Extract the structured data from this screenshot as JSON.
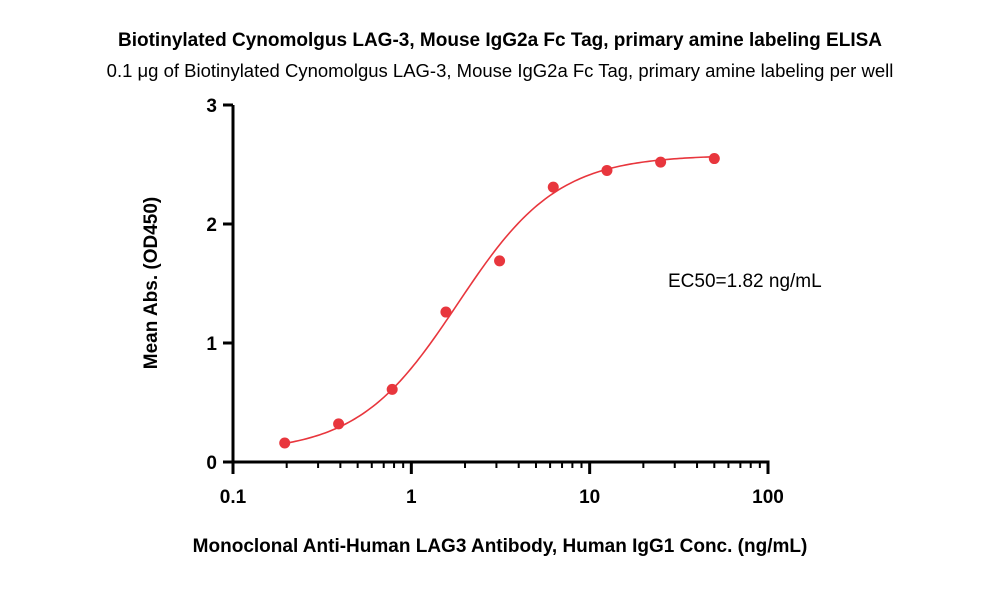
{
  "chart_data": {
    "type": "scatter",
    "title": "Biotinylated Cynomolgus LAG-3, Mouse IgG2a Fc Tag, primary amine labeling ELISA",
    "subtitle": "0.1 μg of Biotinylated Cynomolgus LAG-3, Mouse IgG2a Fc Tag, primary amine labeling per well",
    "xlabel": "Monoclonal Anti-Human LAG3 Antibody, Human IgG1 Conc. (ng/mL)",
    "ylabel": "Mean Abs. (OD450)",
    "xscale": "log",
    "xlim": [
      0.1,
      100
    ],
    "ylim": [
      0,
      3
    ],
    "x_ticks": [
      "0.1",
      "1",
      "10",
      "100"
    ],
    "y_ticks": [
      "0",
      "1",
      "2",
      "3"
    ],
    "grid": false,
    "colors": {
      "series": "#e8363d",
      "axis": "#000000"
    },
    "series": [
      {
        "x": [
          0.195,
          0.391,
          0.781,
          1.563,
          3.125,
          6.25,
          12.5,
          25,
          50
        ],
        "y": [
          0.16,
          0.32,
          0.61,
          1.26,
          1.69,
          2.31,
          2.45,
          2.52,
          2.55
        ]
      }
    ],
    "fit": {
      "model": "4PL",
      "bottom": 0.08,
      "top": 2.58,
      "ec50": 1.82,
      "hill": 1.55
    },
    "annotation": "EC50=1.82 ng/mL"
  }
}
